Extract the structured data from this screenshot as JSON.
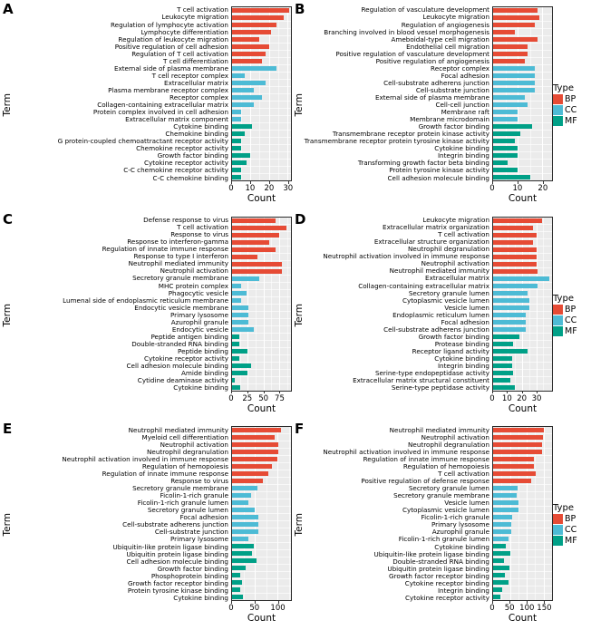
{
  "legend": {
    "title": "Type",
    "entries": [
      {
        "label": "BP",
        "color": "#E64B35"
      },
      {
        "label": "CC",
        "color": "#4DBBD5"
      },
      {
        "label": "MF",
        "color": "#00A087"
      }
    ]
  },
  "colors": {
    "BP": "#E64B35",
    "CC": "#4DBBD5",
    "MF": "#00A087",
    "panel_background": "#EBEBEB",
    "gridline": "#FFFFFF",
    "panel_border": "#2B2B2B"
  },
  "chart_data": [
    {
      "panel_label": "A",
      "type": "bar",
      "orientation": "horizontal",
      "xlabel": "Count",
      "ylabel": "Term",
      "xticks": [
        0,
        10,
        20,
        30
      ],
      "xlim": [
        0,
        32
      ],
      "bars": [
        {
          "term": "T cell activation",
          "type": "BP",
          "count": 31
        },
        {
          "term": "Leukocyte migration",
          "type": "BP",
          "count": 28
        },
        {
          "term": "Regulation of lymphocyte activation",
          "type": "BP",
          "count": 24
        },
        {
          "term": "Lymphocyte differentiation",
          "type": "BP",
          "count": 21
        },
        {
          "term": "Regulation of leukocyte migration",
          "type": "BP",
          "count": 15
        },
        {
          "term": "Positive regulation of cell adhesion",
          "type": "BP",
          "count": 20
        },
        {
          "term": "Regulation of T cell activation",
          "type": "BP",
          "count": 18
        },
        {
          "term": "T cell differentiation",
          "type": "BP",
          "count": 16
        },
        {
          "term": "External side of plasma membrane",
          "type": "CC",
          "count": 24
        },
        {
          "term": "T cell receptor complex",
          "type": "CC",
          "count": 7
        },
        {
          "term": "Extracellular matrix",
          "type": "CC",
          "count": 18
        },
        {
          "term": "Plasma membrane receptor complex",
          "type": "CC",
          "count": 12
        },
        {
          "term": "Receptor complex",
          "type": "CC",
          "count": 16
        },
        {
          "term": "Collagen-containing extracellular matrix",
          "type": "CC",
          "count": 12
        },
        {
          "term": "Protein complex involved in cell adhesion",
          "type": "CC",
          "count": 5
        },
        {
          "term": "Extracellular matrix component",
          "type": "CC",
          "count": 5
        },
        {
          "term": "Cytokine binding",
          "type": "MF",
          "count": 11
        },
        {
          "term": "Chemokine binding",
          "type": "MF",
          "count": 7
        },
        {
          "term": "G protein-coupled chemoattractant receptor activity",
          "type": "MF",
          "count": 5
        },
        {
          "term": "Chemokine receptor activity",
          "type": "MF",
          "count": 5
        },
        {
          "term": "Growth factor binding",
          "type": "MF",
          "count": 10
        },
        {
          "term": "Cytokine receptor activity",
          "type": "MF",
          "count": 8
        },
        {
          "term": "C-C chemokine receptor activity",
          "type": "MF",
          "count": 5
        },
        {
          "term": "C-C chemokine binding",
          "type": "MF",
          "count": 5
        }
      ]
    },
    {
      "panel_label": "B",
      "type": "bar",
      "orientation": "horizontal",
      "xlabel": "Count",
      "ylabel": "Term",
      "xticks": [
        0,
        10,
        20
      ],
      "xlim": [
        0,
        24
      ],
      "bars": [
        {
          "term": "Regulation of vasculature development",
          "type": "BP",
          "count": 18
        },
        {
          "term": "Leukocyte migration",
          "type": "BP",
          "count": 19
        },
        {
          "term": "Regulation of angiogenesis",
          "type": "BP",
          "count": 17
        },
        {
          "term": "Branching involved in blood vessel morphogenesis",
          "type": "BP",
          "count": 9
        },
        {
          "term": "Ameboidal-type cell migration",
          "type": "BP",
          "count": 18
        },
        {
          "term": "Endothelial cell migration",
          "type": "BP",
          "count": 14
        },
        {
          "term": "Positive regulation of vasculature development",
          "type": "BP",
          "count": 14
        },
        {
          "term": "Positive regulation of angiogenesis",
          "type": "BP",
          "count": 13
        },
        {
          "term": "Receptor complex",
          "type": "CC",
          "count": 17
        },
        {
          "term": "Focal adhesion",
          "type": "CC",
          "count": 17
        },
        {
          "term": "Cell-substrate adherens junction",
          "type": "CC",
          "count": 17
        },
        {
          "term": "Cell-substrate junction",
          "type": "CC",
          "count": 17
        },
        {
          "term": "External side of plasma membrane",
          "type": "CC",
          "count": 13
        },
        {
          "term": "Cell-cell junction",
          "type": "CC",
          "count": 14
        },
        {
          "term": "Membrane raft",
          "type": "CC",
          "count": 10
        },
        {
          "term": "Membrane microdomain",
          "type": "CC",
          "count": 10
        },
        {
          "term": "Growth factor binding",
          "type": "MF",
          "count": 16
        },
        {
          "term": "Transmembrane receptor protein kinase activity",
          "type": "MF",
          "count": 11
        },
        {
          "term": "Transmembrane receptor protein tyrosine kinase activity",
          "type": "MF",
          "count": 9
        },
        {
          "term": "Cytokine binding",
          "type": "MF",
          "count": 10
        },
        {
          "term": "Integrin binding",
          "type": "MF",
          "count": 10
        },
        {
          "term": "Transforming growth factor beta binding",
          "type": "MF",
          "count": 6
        },
        {
          "term": "Protein tyrosine kinase activity",
          "type": "MF",
          "count": 10
        },
        {
          "term": "Cell adhesion molecule binding",
          "type": "MF",
          "count": 15
        }
      ]
    },
    {
      "panel_label": "C",
      "type": "bar",
      "orientation": "horizontal",
      "xlabel": "Count",
      "ylabel": "Term",
      "xticks": [
        0,
        25,
        50,
        75
      ],
      "xlim": [
        0,
        94
      ],
      "bars": [
        {
          "term": "Defense response to virus",
          "type": "BP",
          "count": 69
        },
        {
          "term": "T cell activation",
          "type": "BP",
          "count": 87
        },
        {
          "term": "Response to virus",
          "type": "BP",
          "count": 75
        },
        {
          "term": "Response to interferon-gamma",
          "type": "BP",
          "count": 59
        },
        {
          "term": "Regulation of innate immune response",
          "type": "BP",
          "count": 69
        },
        {
          "term": "Response to type I interferon",
          "type": "BP",
          "count": 40
        },
        {
          "term": "Neutrophil mediated immunity",
          "type": "BP",
          "count": 80
        },
        {
          "term": "Neutrophil activation",
          "type": "BP",
          "count": 79
        },
        {
          "term": "Secretory granule membrane",
          "type": "CC",
          "count": 44
        },
        {
          "term": "MHC protein complex",
          "type": "CC",
          "count": 15
        },
        {
          "term": "Phagocytic vesicle",
          "type": "CC",
          "count": 23
        },
        {
          "term": "Lumenal side of endoplasmic reticulum membrane",
          "type": "CC",
          "count": 15
        },
        {
          "term": "Endocytic vesicle membrane",
          "type": "CC",
          "count": 26
        },
        {
          "term": "Primary lysosome",
          "type": "CC",
          "count": 26
        },
        {
          "term": "Azurophil granule",
          "type": "CC",
          "count": 26
        },
        {
          "term": "Endocytic vesicle",
          "type": "CC",
          "count": 35
        },
        {
          "term": "Peptide antigen binding",
          "type": "MF",
          "count": 11
        },
        {
          "term": "Double-stranded RNA binding",
          "type": "MF",
          "count": 11
        },
        {
          "term": "Peptide binding",
          "type": "MF",
          "count": 25
        },
        {
          "term": "Cytokine receptor activity",
          "type": "MF",
          "count": 11
        },
        {
          "term": "Cell adhesion molecule binding",
          "type": "MF",
          "count": 30
        },
        {
          "term": "Amide binding",
          "type": "MF",
          "count": 25
        },
        {
          "term": "Cytidine deaminase activity",
          "type": "MF",
          "count": 5
        },
        {
          "term": "Cytokine binding",
          "type": "MF",
          "count": 13
        }
      ]
    },
    {
      "panel_label": "D",
      "type": "bar",
      "orientation": "horizontal",
      "xlabel": "Count",
      "ylabel": "Term",
      "xticks": [
        0,
        10,
        20,
        30
      ],
      "xlim": [
        0,
        41
      ],
      "bars": [
        {
          "term": "Leukocyte migration",
          "type": "BP",
          "count": 34
        },
        {
          "term": "Extracellular matrix organization",
          "type": "BP",
          "count": 28
        },
        {
          "term": "T cell activation",
          "type": "BP",
          "count": 30
        },
        {
          "term": "Extracellular structure organization",
          "type": "BP",
          "count": 28
        },
        {
          "term": "Neutrophil degranulation",
          "type": "BP",
          "count": 30
        },
        {
          "term": "Neutrophil activation involved in immune response",
          "type": "BP",
          "count": 30
        },
        {
          "term": "Neutrophil activation",
          "type": "BP",
          "count": 30
        },
        {
          "term": "Neutrophil mediated immunity",
          "type": "BP",
          "count": 31
        },
        {
          "term": "Extracellular matrix",
          "type": "CC",
          "count": 39
        },
        {
          "term": "Collagen-containing extracellular matrix",
          "type": "CC",
          "count": 31
        },
        {
          "term": "Secretory granule lumen",
          "type": "CC",
          "count": 24
        },
        {
          "term": "Cytoplasmic vesicle lumen",
          "type": "CC",
          "count": 25
        },
        {
          "term": "Vesicle lumen",
          "type": "CC",
          "count": 25
        },
        {
          "term": "Endoplasmic reticulum lumen",
          "type": "CC",
          "count": 23
        },
        {
          "term": "Focal adhesion",
          "type": "CC",
          "count": 23
        },
        {
          "term": "Cell-substrate adherens junction",
          "type": "CC",
          "count": 23
        },
        {
          "term": "Growth factor binding",
          "type": "MF",
          "count": 18
        },
        {
          "term": "Protease binding",
          "type": "MF",
          "count": 14
        },
        {
          "term": "Receptor ligand activity",
          "type": "MF",
          "count": 24
        },
        {
          "term": "Cytokine binding",
          "type": "MF",
          "count": 13
        },
        {
          "term": "Integrin binding",
          "type": "MF",
          "count": 13
        },
        {
          "term": "Serine-type endopeptidase activity",
          "type": "MF",
          "count": 14
        },
        {
          "term": "Extracellular matrix structural constituent",
          "type": "MF",
          "count": 12
        },
        {
          "term": "Serine-type peptidase activity",
          "type": "MF",
          "count": 15
        }
      ]
    },
    {
      "panel_label": "E",
      "type": "bar",
      "orientation": "horizontal",
      "xlabel": "Count",
      "ylabel": "Term",
      "xticks": [
        0,
        50,
        100
      ],
      "xlim": [
        0,
        130
      ],
      "bars": [
        {
          "term": "Neutrophil mediated immunity",
          "type": "BP",
          "count": 107
        },
        {
          "term": "Myeloid cell differentiation",
          "type": "BP",
          "count": 93
        },
        {
          "term": "Neutrophil activation",
          "type": "BP",
          "count": 102
        },
        {
          "term": "Neutrophil degranulation",
          "type": "BP",
          "count": 102
        },
        {
          "term": "Neutrophil activation involved in immune response",
          "type": "BP",
          "count": 100
        },
        {
          "term": "Regulation of hemopoiesis",
          "type": "BP",
          "count": 87
        },
        {
          "term": "Regulation of innate immune response",
          "type": "BP",
          "count": 80
        },
        {
          "term": "Response to virus",
          "type": "BP",
          "count": 67
        },
        {
          "term": "Secretory granule membrane",
          "type": "CC",
          "count": 56
        },
        {
          "term": "Ficolin-1-rich granule",
          "type": "CC",
          "count": 42
        },
        {
          "term": "Ficolin-1-rich granule lumen",
          "type": "CC",
          "count": 35
        },
        {
          "term": "Secretory granule lumen",
          "type": "CC",
          "count": 50
        },
        {
          "term": "Focal adhesion",
          "type": "CC",
          "count": 57
        },
        {
          "term": "Cell-substrate adherens junction",
          "type": "CC",
          "count": 57
        },
        {
          "term": "Cell-substrate junction",
          "type": "CC",
          "count": 57
        },
        {
          "term": "Primary lysosome",
          "type": "CC",
          "count": 36
        },
        {
          "term": "Ubiquitin-like protein ligase binding",
          "type": "MF",
          "count": 48
        },
        {
          "term": "Ubiquitin protein ligase binding",
          "type": "MF",
          "count": 44
        },
        {
          "term": "Cell adhesion molecule binding",
          "type": "MF",
          "count": 54
        },
        {
          "term": "Growth factor binding",
          "type": "MF",
          "count": 29
        },
        {
          "term": "Phosphoprotein binding",
          "type": "MF",
          "count": 18
        },
        {
          "term": "Growth factor receptor binding",
          "type": "MF",
          "count": 21
        },
        {
          "term": "Protein tyrosine kinase binding",
          "type": "MF",
          "count": 18
        },
        {
          "term": "Cytokine binding",
          "type": "MF",
          "count": 23
        }
      ]
    },
    {
      "panel_label": "F",
      "type": "bar",
      "orientation": "horizontal",
      "xlabel": "Count",
      "ylabel": "Term",
      "xticks": [
        0,
        50,
        100,
        150
      ],
      "xlim": [
        0,
        175
      ],
      "bars": [
        {
          "term": "Neutrophil mediated immunity",
          "type": "BP",
          "count": 150
        },
        {
          "term": "Neutrophil activation",
          "type": "BP",
          "count": 148
        },
        {
          "term": "Neutrophil degranulation",
          "type": "BP",
          "count": 145
        },
        {
          "term": "Neutrophil activation involved in immune response",
          "type": "BP",
          "count": 145
        },
        {
          "term": "Regulation of innate immune response",
          "type": "BP",
          "count": 120
        },
        {
          "term": "Regulation of hemopoiesis",
          "type": "BP",
          "count": 120
        },
        {
          "term": "T cell activation",
          "type": "BP",
          "count": 127
        },
        {
          "term": "Positive regulation of defense response",
          "type": "BP",
          "count": 114
        },
        {
          "term": "Secretory granule lumen",
          "type": "CC",
          "count": 74
        },
        {
          "term": "Secretory granule membrane",
          "type": "CC",
          "count": 70
        },
        {
          "term": "Vesicle lumen",
          "type": "CC",
          "count": 76
        },
        {
          "term": "Cytoplasmic vesicle lumen",
          "type": "CC",
          "count": 76
        },
        {
          "term": "Ficolin-1-rich granule",
          "type": "CC",
          "count": 56
        },
        {
          "term": "Primary lysosome",
          "type": "CC",
          "count": 54
        },
        {
          "term": "Azurophil granule",
          "type": "CC",
          "count": 54
        },
        {
          "term": "Ficolin-1-rich granule lumen",
          "type": "CC",
          "count": 47
        },
        {
          "term": "Cytokine binding",
          "type": "MF",
          "count": 38
        },
        {
          "term": "Ubiquitin-like protein ligase binding",
          "type": "MF",
          "count": 52
        },
        {
          "term": "Double-stranded RNA binding",
          "type": "MF",
          "count": 33
        },
        {
          "term": "Ubiquitin protein ligase binding",
          "type": "MF",
          "count": 49
        },
        {
          "term": "Growth factor receptor binding",
          "type": "MF",
          "count": 36
        },
        {
          "term": "Cytokine receptor binding",
          "type": "MF",
          "count": 47
        },
        {
          "term": "Integrin binding",
          "type": "MF",
          "count": 26
        },
        {
          "term": "Cytokine receptor activity",
          "type": "MF",
          "count": 22
        }
      ]
    }
  ]
}
